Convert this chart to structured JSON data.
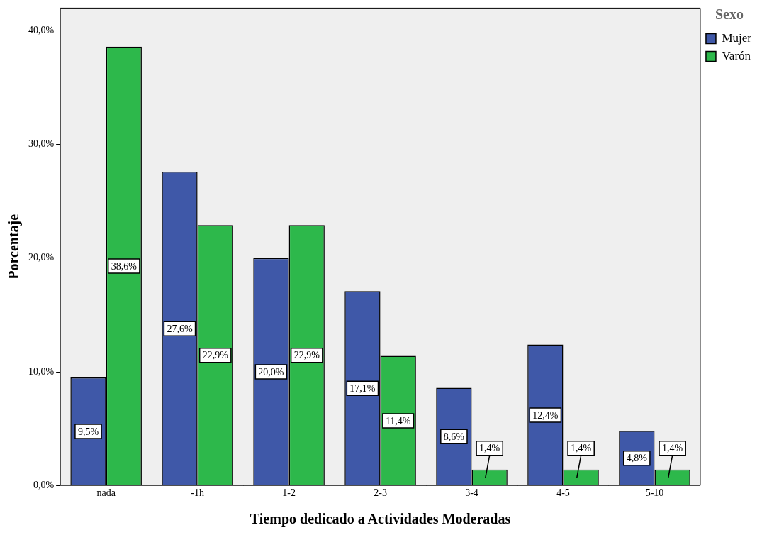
{
  "chart_data": {
    "type": "bar",
    "xlabel": "Tiempo dedicado a Actividades Moderadas",
    "ylabel": "Porcentaje",
    "legend_title": "Sexo",
    "legend": "top right",
    "grid": false,
    "categories": [
      "nada",
      "-1h",
      "1-2",
      "2-3",
      "3-4",
      "4-5",
      "5-10"
    ],
    "ylim": [
      0,
      42
    ],
    "yticks": [
      {
        "value": 0,
        "label": "0,0%"
      },
      {
        "value": 10,
        "label": "10,0%"
      },
      {
        "value": 20,
        "label": "20,0%"
      },
      {
        "value": 30,
        "label": "30,0%"
      },
      {
        "value": 40,
        "label": "40,0%"
      }
    ],
    "series": [
      {
        "name": "Mujer",
        "color": "#3f58a8",
        "values": [
          9.5,
          27.6,
          20.0,
          17.1,
          8.6,
          12.4,
          4.8
        ],
        "value_labels": [
          "9,5%",
          "27,6%",
          "20,0%",
          "17,1%",
          "8,6%",
          "12,4%",
          "4,8%"
        ]
      },
      {
        "name": "Varón",
        "color": "#2db84b",
        "values": [
          38.6,
          22.9,
          22.9,
          11.4,
          1.4,
          1.4,
          1.4
        ],
        "value_labels": [
          "38,6%",
          "22,9%",
          "22,9%",
          "11,4%",
          "1,4%",
          "1,4%",
          "1,4%"
        ]
      }
    ]
  }
}
